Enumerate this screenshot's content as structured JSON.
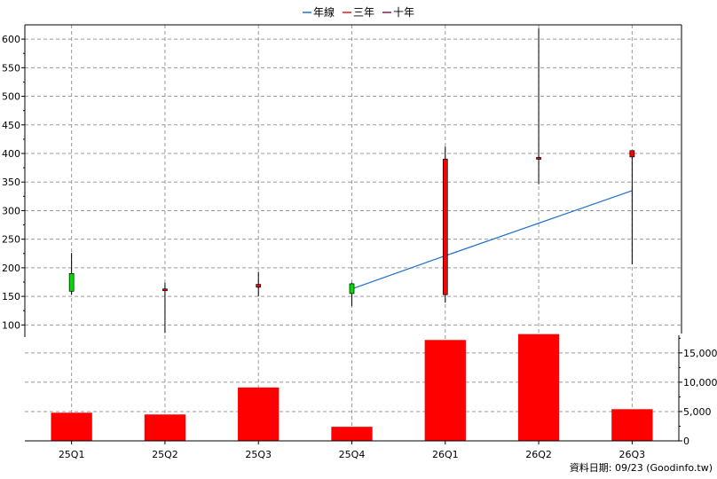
{
  "chart_data": {
    "type": "candlestick",
    "legend": {
      "position": "top",
      "items": [
        {
          "label": "年線",
          "color": "#1e6fd0"
        },
        {
          "label": "三年",
          "color": "#e31a1c"
        },
        {
          "label": "十年",
          "color": "#8b1a4a"
        }
      ]
    },
    "categories": [
      "25Q1",
      "25Q2",
      "25Q3",
      "25Q4",
      "26Q1",
      "26Q2",
      "26Q3"
    ],
    "price": {
      "ylim": [
        85,
        625
      ],
      "ticks": [
        100,
        150,
        200,
        250,
        300,
        350,
        400,
        450,
        500,
        550,
        600
      ],
      "grid": true,
      "candles": [
        {
          "open": 159,
          "high": 226,
          "low": 153,
          "close": 190,
          "color": "#00dd00"
        },
        {
          "open": 160,
          "high": 174,
          "low": 86,
          "close": 163,
          "color": "#ff0000"
        },
        {
          "open": 166,
          "high": 193,
          "low": 150,
          "close": 171,
          "color": "#ff0000"
        },
        {
          "open": 155,
          "high": 174,
          "low": 133,
          "close": 172,
          "color": "#00dd00"
        },
        {
          "open": 153,
          "high": 412,
          "low": 139,
          "close": 390,
          "color": "#ff0000"
        },
        {
          "open": 390,
          "high": 619,
          "low": 346,
          "close": 393,
          "color": "#ff0000"
        },
        {
          "open": 394,
          "high": 402,
          "low": 206,
          "close": 405,
          "color": "#ff0000"
        }
      ],
      "year_line": {
        "color": "#1e6fd0",
        "start_index": 3,
        "values": [
          null,
          null,
          null,
          163,
          221,
          278,
          335
        ]
      }
    },
    "volume": {
      "ylim": [
        0,
        18000
      ],
      "ticks": [
        0,
        5000,
        10000,
        15000
      ],
      "tick_labels": [
        "0",
        "5,000",
        "10,000",
        "15,000"
      ],
      "color": "#ff0000",
      "values": [
        4800,
        4500,
        9100,
        2400,
        17200,
        18200,
        5400
      ]
    }
  },
  "footer": {
    "source_text": "資料日期: 09/23  (Goodinfo.tw)"
  }
}
